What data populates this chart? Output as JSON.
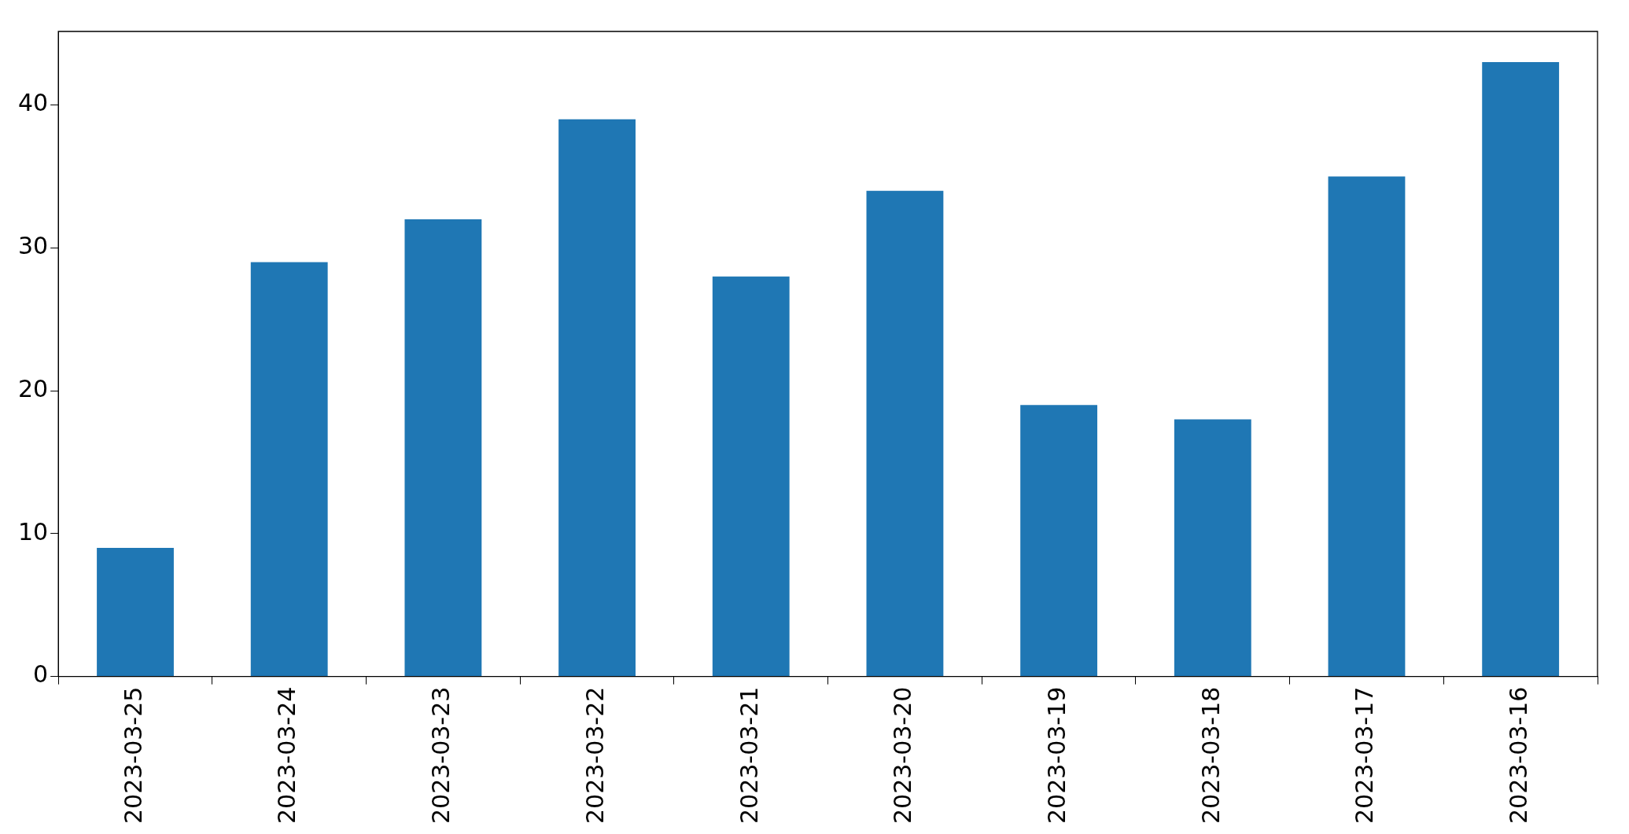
{
  "chart_data": {
    "type": "bar",
    "categories": [
      "2023-03-25",
      "2023-03-24",
      "2023-03-23",
      "2023-03-22",
      "2023-03-21",
      "2023-03-20",
      "2023-03-19",
      "2023-03-18",
      "2023-03-17",
      "2023-03-16"
    ],
    "values": [
      9,
      29,
      32,
      39,
      28,
      34,
      19,
      18,
      35,
      43
    ],
    "color": "#1f77b4",
    "ylim": [
      0,
      45.15
    ],
    "yticks": [
      0,
      10,
      20,
      30,
      40
    ],
    "grid": false,
    "legend": false
  }
}
